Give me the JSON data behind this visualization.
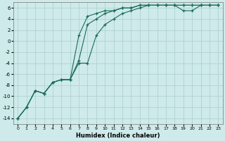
{
  "xlabel": "Humidex (Indice chaleur)",
  "background_color": "#ceeaea",
  "grid_color": "#aacece",
  "line_color": "#1a6b5a",
  "xlim": [
    -0.5,
    23.5
  ],
  "ylim": [
    -15,
    7
  ],
  "xticks": [
    0,
    1,
    2,
    3,
    4,
    5,
    6,
    7,
    8,
    9,
    10,
    11,
    12,
    13,
    14,
    15,
    16,
    17,
    18,
    19,
    20,
    21,
    22,
    23
  ],
  "yticks": [
    -14,
    -12,
    -10,
    -8,
    -6,
    -4,
    -2,
    0,
    2,
    4,
    6
  ],
  "line1_x": [
    0,
    1,
    2,
    3,
    4,
    5,
    6,
    7,
    8,
    9,
    10,
    11,
    12,
    13,
    14,
    15,
    16,
    17,
    18,
    19,
    20,
    21,
    22,
    23
  ],
  "line1_y": [
    -14,
    -12,
    -9,
    -9.5,
    -7.5,
    -7,
    -7,
    1,
    4.5,
    5,
    5.5,
    5.5,
    6,
    6,
    6.5,
    6.5,
    6.5,
    6.5,
    6.5,
    6.5,
    6.5,
    6.5,
    6.5,
    6.5
  ],
  "line2_x": [
    0,
    1,
    2,
    3,
    4,
    5,
    6,
    7,
    8,
    9,
    10,
    11,
    12,
    13,
    14,
    15,
    16,
    17,
    18,
    19,
    20,
    21,
    22,
    23
  ],
  "line2_y": [
    -14,
    -12,
    -9,
    -9.5,
    -7.5,
    -7,
    -7,
    -3.5,
    3,
    4,
    5,
    5.5,
    6,
    6,
    6.5,
    6.5,
    6.5,
    6.5,
    6.5,
    6.5,
    6.5,
    6.5,
    6.5,
    6.5
  ],
  "line3_x": [
    0,
    1,
    2,
    3,
    4,
    5,
    6,
    7,
    8,
    9,
    10,
    11,
    12,
    13,
    14,
    15,
    16,
    17,
    18,
    19,
    20,
    21,
    22,
    23
  ],
  "line3_y": [
    -14,
    -12,
    -9,
    -9.5,
    -7.5,
    -7,
    -7,
    -4,
    -4,
    1,
    3,
    4,
    5,
    5.5,
    6,
    6.5,
    6.5,
    6.5,
    6.5,
    5.5,
    5.5,
    6.5,
    6.5,
    6.5
  ]
}
